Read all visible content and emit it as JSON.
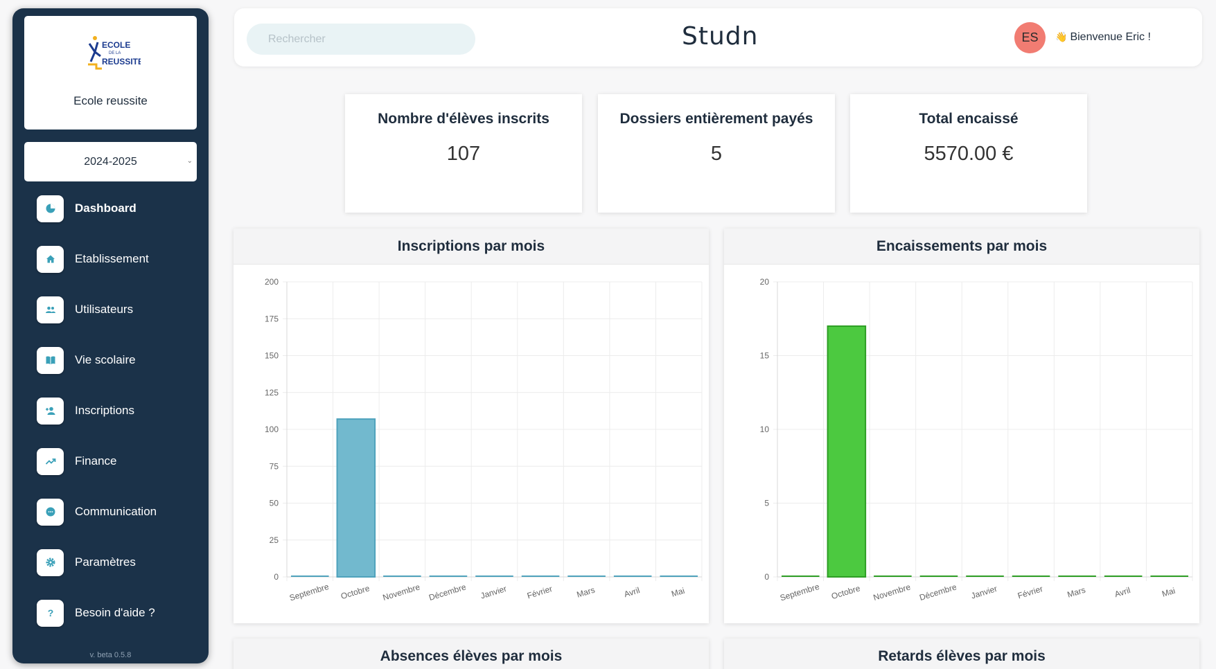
{
  "sidebar": {
    "school_name": "Ecole reussite",
    "logo": {
      "line1": "ECOLE",
      "line2": "DE LA",
      "line3": "REUSSITE"
    },
    "year": "2024-2025",
    "items": [
      {
        "label": "Dashboard",
        "icon": "pie-chart-icon",
        "active": true
      },
      {
        "label": "Etablissement",
        "icon": "home-icon"
      },
      {
        "label": "Utilisateurs",
        "icon": "users-icon"
      },
      {
        "label": "Vie scolaire",
        "icon": "book-icon"
      },
      {
        "label": "Inscriptions",
        "icon": "add-user-icon"
      },
      {
        "label": "Finance",
        "icon": "trend-icon"
      },
      {
        "label": "Communication",
        "icon": "chat-icon"
      },
      {
        "label": "Paramètres",
        "icon": "gear-icon"
      },
      {
        "label": "Besoin d'aide ?",
        "icon": "help-icon"
      }
    ],
    "version": "v. beta 0.5.8"
  },
  "header": {
    "search_placeholder": "Rechercher",
    "brand": "Studn",
    "avatar_initials": "ES",
    "welcome": "Bienvenue Eric !"
  },
  "stats": [
    {
      "title": "Nombre d'élèves inscrits",
      "value": "107"
    },
    {
      "title": "Dossiers entièrement payés",
      "value": "5"
    },
    {
      "title": "Total encaissé",
      "value": "5570.00 €"
    }
  ],
  "colors": {
    "sidebar_bg": "#1b3249",
    "accent": "#1e8fa3",
    "inscriptions_bar": "#72b9ce",
    "inscriptions_border": "#4ea2bc",
    "encaissements_bar": "#4cc940",
    "encaissements_border": "#2d9e24",
    "avatar_bg": "#f17c72"
  },
  "panels": {
    "absences_title": "Absences élèves par mois",
    "retards_title": "Retards élèves par mois"
  },
  "chart_data": [
    {
      "type": "bar",
      "title": "Inscriptions par mois",
      "categories": [
        "Septembre",
        "Octobre",
        "Novembre",
        "Décembre",
        "Janvier",
        "Février",
        "Mars",
        "Avril",
        "Mai"
      ],
      "values": [
        0,
        107,
        0,
        0,
        0,
        0,
        0,
        0,
        0
      ],
      "ylim": [
        0,
        200
      ],
      "yticks": [
        0,
        25,
        50,
        75,
        100,
        125,
        150,
        175,
        200
      ],
      "grid": true
    },
    {
      "type": "bar",
      "title": "Encaissements par mois",
      "categories": [
        "Septembre",
        "Octobre",
        "Novembre",
        "Décembre",
        "Janvier",
        "Février",
        "Mars",
        "Avril",
        "Mai"
      ],
      "values": [
        0,
        17,
        0,
        0,
        0,
        0,
        0,
        0,
        0
      ],
      "ylim": [
        0,
        20
      ],
      "yticks": [
        0,
        5,
        10,
        15,
        20
      ],
      "grid": true
    }
  ]
}
